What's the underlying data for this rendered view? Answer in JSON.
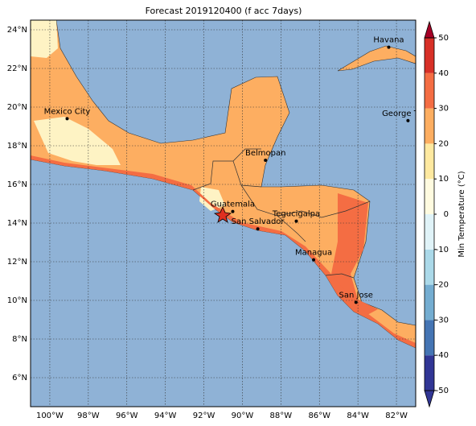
{
  "map": {
    "title": "Forecast 2019120400 (f acc 7days)",
    "xlim": [
      -101,
      -81
    ],
    "ylim": [
      4.5,
      24.5
    ],
    "xticks": [
      {
        "value": -100,
        "label": "100°W"
      },
      {
        "value": -98,
        "label": "98°W"
      },
      {
        "value": -96,
        "label": "96°W"
      },
      {
        "value": -94,
        "label": "94°W"
      },
      {
        "value": -92,
        "label": "92°W"
      },
      {
        "value": -90,
        "label": "90°W"
      },
      {
        "value": -88,
        "label": "88°W"
      },
      {
        "value": -86,
        "label": "86°W"
      },
      {
        "value": -84,
        "label": "84°W"
      },
      {
        "value": -82,
        "label": "82°W"
      }
    ],
    "yticks": [
      {
        "value": 6,
        "label": "6°N"
      },
      {
        "value": 8,
        "label": "8°N"
      },
      {
        "value": 10,
        "label": "10°N"
      },
      {
        "value": 12,
        "label": "12°N"
      },
      {
        "value": 14,
        "label": "14°N"
      },
      {
        "value": 16,
        "label": "16°N"
      },
      {
        "value": 18,
        "label": "18°N"
      },
      {
        "value": 20,
        "label": "20°N"
      },
      {
        "value": 22,
        "label": "22°N"
      },
      {
        "value": 24,
        "label": "24°N"
      }
    ],
    "grid": true,
    "cities": [
      {
        "name": "Havana",
        "lon": -82.4,
        "lat": 23.1
      },
      {
        "name": "Mexico City",
        "lon": -99.1,
        "lat": 19.4
      },
      {
        "name": "George Town",
        "lon": -81.4,
        "lat": 19.3
      },
      {
        "name": "Belmopan",
        "lon": -88.8,
        "lat": 17.25
      },
      {
        "name": "Guatemala",
        "lon": -90.5,
        "lat": 14.6
      },
      {
        "name": "San Salvador",
        "lon": -89.2,
        "lat": 13.7
      },
      {
        "name": "Tegucigalpa",
        "lon": -87.2,
        "lat": 14.1
      },
      {
        "name": "Managua",
        "lon": -86.3,
        "lat": 12.1
      },
      {
        "name": "San Jose",
        "lon": -84.1,
        "lat": 9.9
      }
    ],
    "colorbar": {
      "label": "Min Temperature (°C)",
      "lim": [
        -50,
        50
      ],
      "ticks": [
        -50,
        -40,
        -30,
        -20,
        -10,
        0,
        10,
        20,
        30,
        40,
        50
      ],
      "colors": [
        "#313695",
        "#4575b4",
        "#74add1",
        "#abd9e9",
        "#e0f3f8",
        "#fffbe0",
        "#fee9a0",
        "#fdae61",
        "#f46d43",
        "#d73027",
        "#a50026"
      ]
    }
  }
}
